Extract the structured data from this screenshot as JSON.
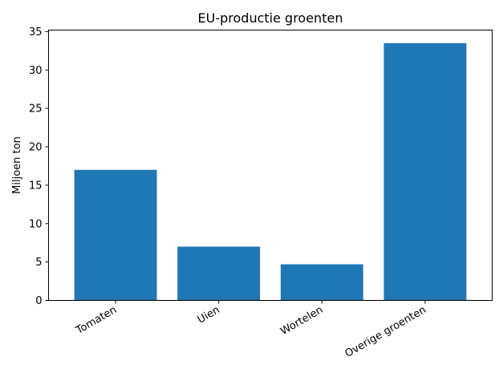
{
  "chart_data": {
    "type": "bar",
    "title": "EU-productie groenten",
    "xlabel": "",
    "ylabel": "Miljoen ton",
    "categories": [
      "Tomaten",
      "Uien",
      "Wortelen",
      "Overige groenten"
    ],
    "values": [
      17.0,
      7.0,
      4.7,
      33.5
    ],
    "ylim": [
      0,
      35.2
    ],
    "yticks": [
      0,
      5,
      10,
      15,
      20,
      25,
      30,
      35
    ],
    "grid": false,
    "bar_color": "#1f77b4"
  }
}
